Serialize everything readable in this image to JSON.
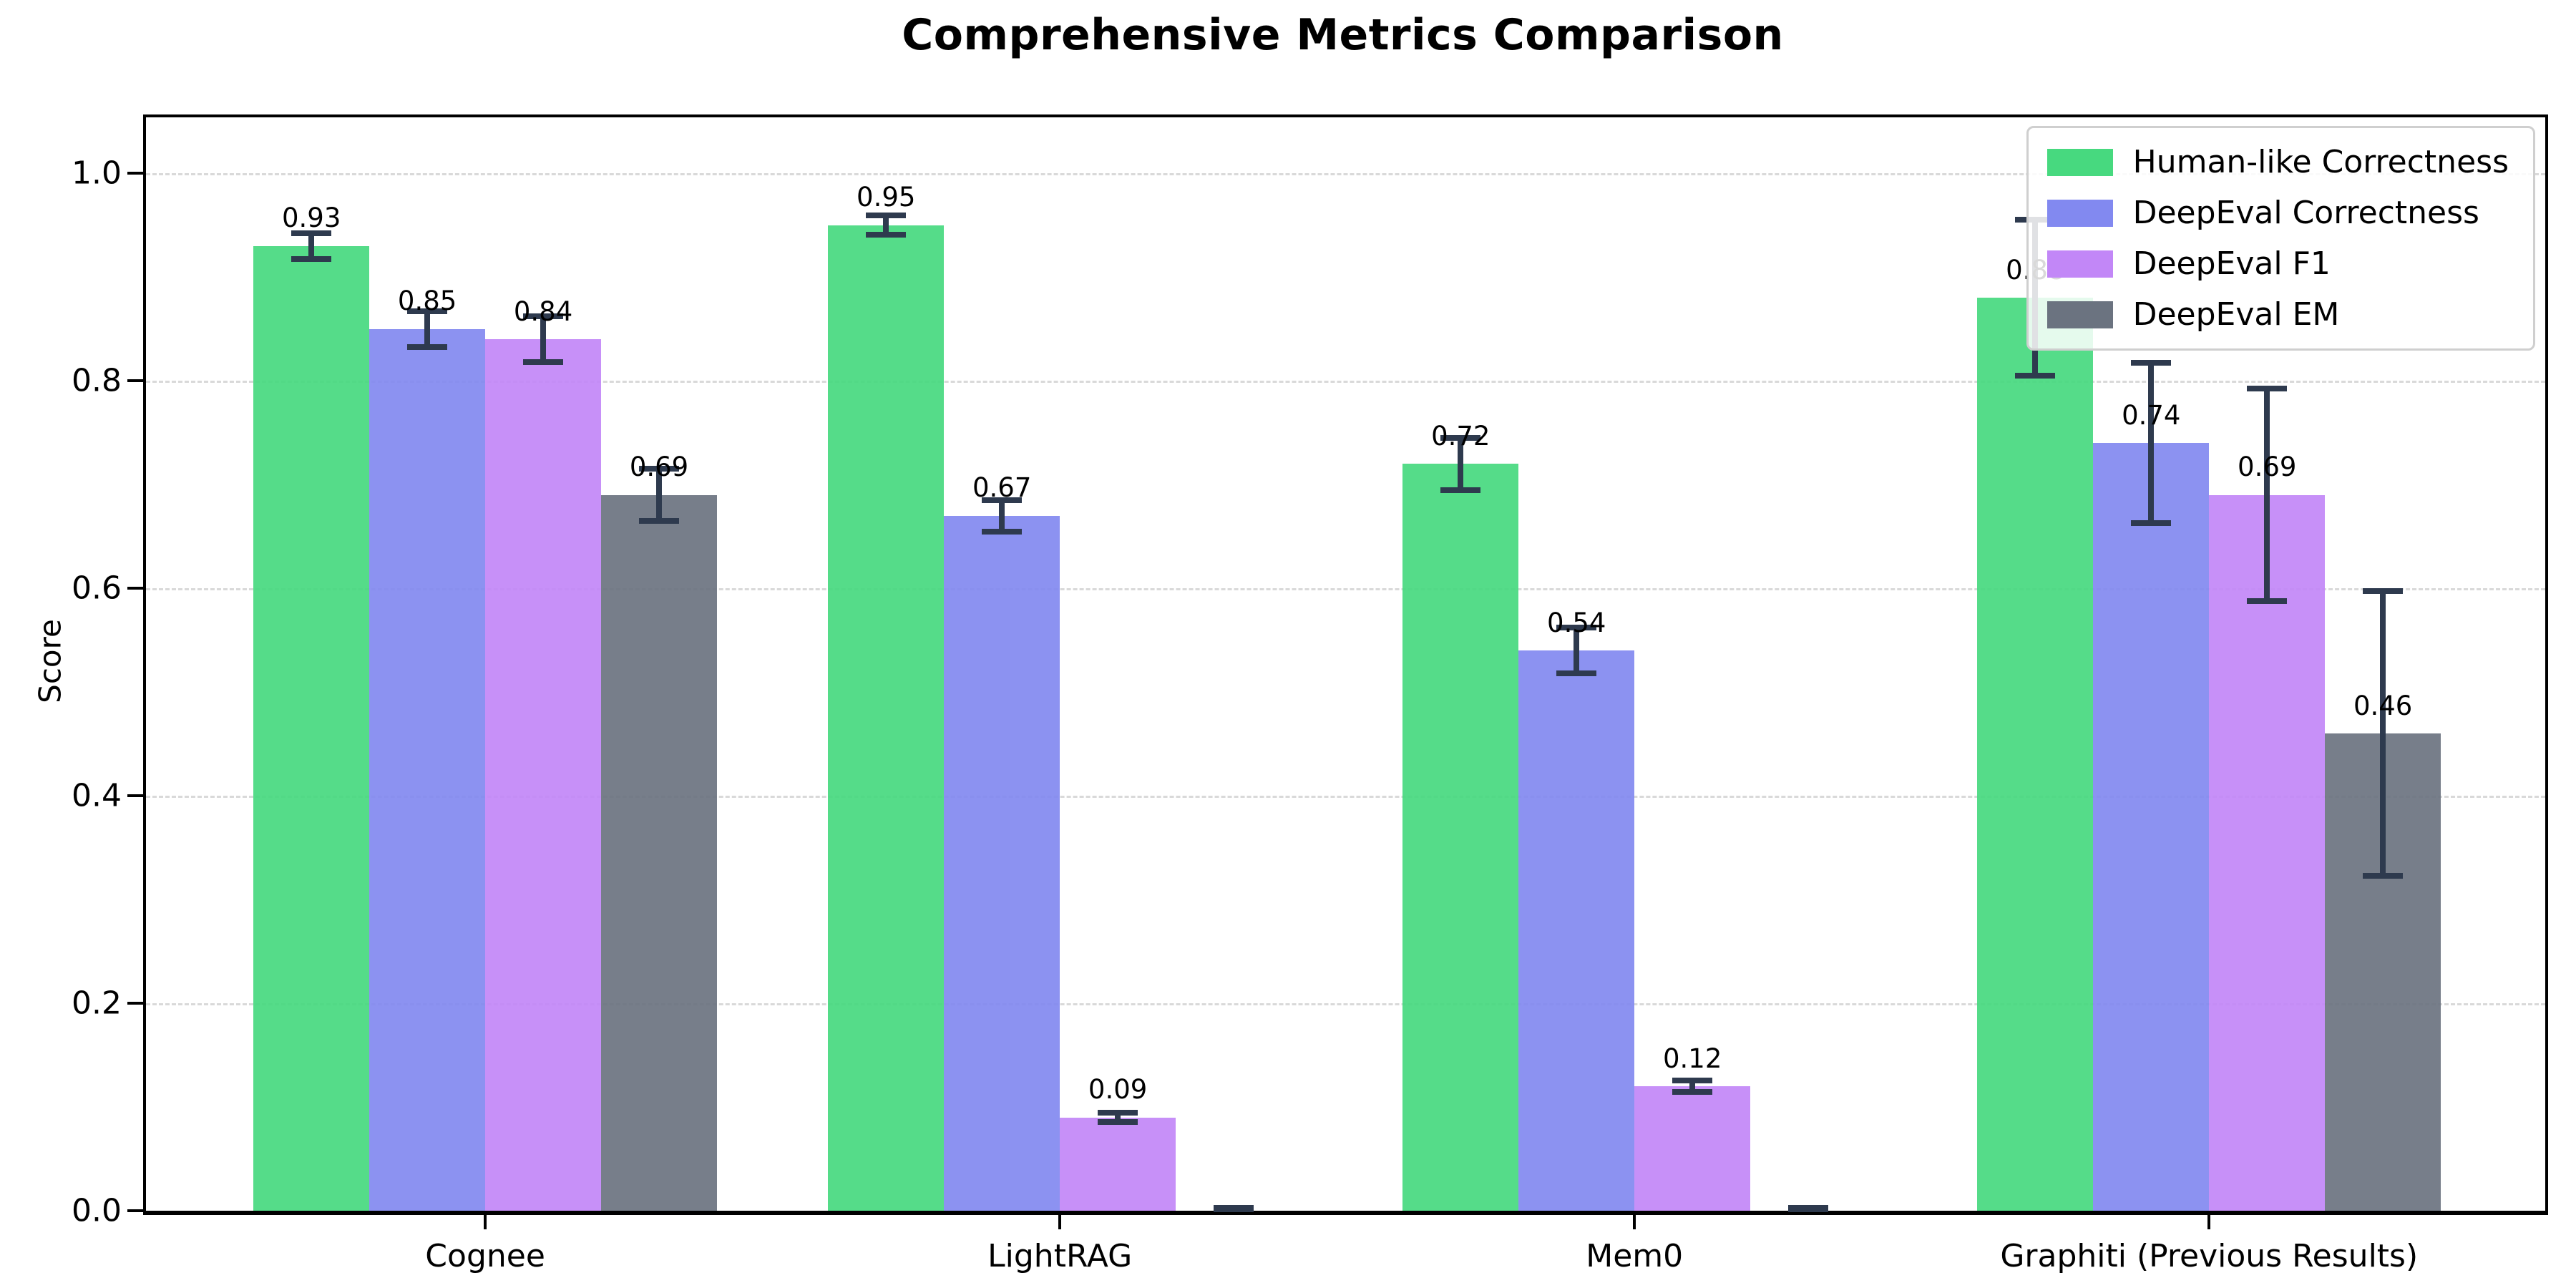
{
  "chart_data": {
    "type": "bar",
    "title": "Comprehensive Metrics Comparison",
    "ylabel": "Score",
    "xlabel": "",
    "categories": [
      "Cognee",
      "LightRAG",
      "Mem0",
      "Graphiti (Previous Results)"
    ],
    "series": [
      {
        "name": "Human-like Correctness",
        "color": "#47d97f",
        "values": [
          0.93,
          0.95,
          0.72,
          0.88
        ],
        "errors": [
          0.015,
          0.012,
          0.028,
          0.078
        ],
        "bar_labels": [
          "0.93",
          "0.95",
          "0.72",
          "0.88"
        ]
      },
      {
        "name": "DeepEval Correctness",
        "color": "#8289f0",
        "values": [
          0.85,
          0.67,
          0.54,
          0.74
        ],
        "errors": [
          0.02,
          0.018,
          0.025,
          0.08
        ],
        "bar_labels": [
          "0.85",
          "0.67",
          "0.54",
          "0.74"
        ]
      },
      {
        "name": "DeepEval F1",
        "color": "#c287f7",
        "values": [
          0.84,
          0.09,
          0.12,
          0.69
        ],
        "errors": [
          0.025,
          0.007,
          0.008,
          0.105
        ],
        "bar_labels": [
          "0.84",
          "0.09",
          "0.12",
          "0.69"
        ]
      },
      {
        "name": "DeepEval EM",
        "color": "#6b7380",
        "values": [
          0.69,
          0.0,
          0.0,
          0.46
        ],
        "errors": [
          0.028,
          0.004,
          0.004,
          0.14
        ],
        "bar_labels": [
          "0.69",
          "",
          "",
          "0.46"
        ]
      }
    ],
    "yticks": [
      "0.0",
      "0.2",
      "0.4",
      "0.6",
      "0.8",
      "1.0"
    ],
    "ylim": [
      0,
      1.054
    ],
    "grid": "dashed-horizontal",
    "legend_position": "upper-right",
    "error_bar_color": "#2e3a4e"
  }
}
